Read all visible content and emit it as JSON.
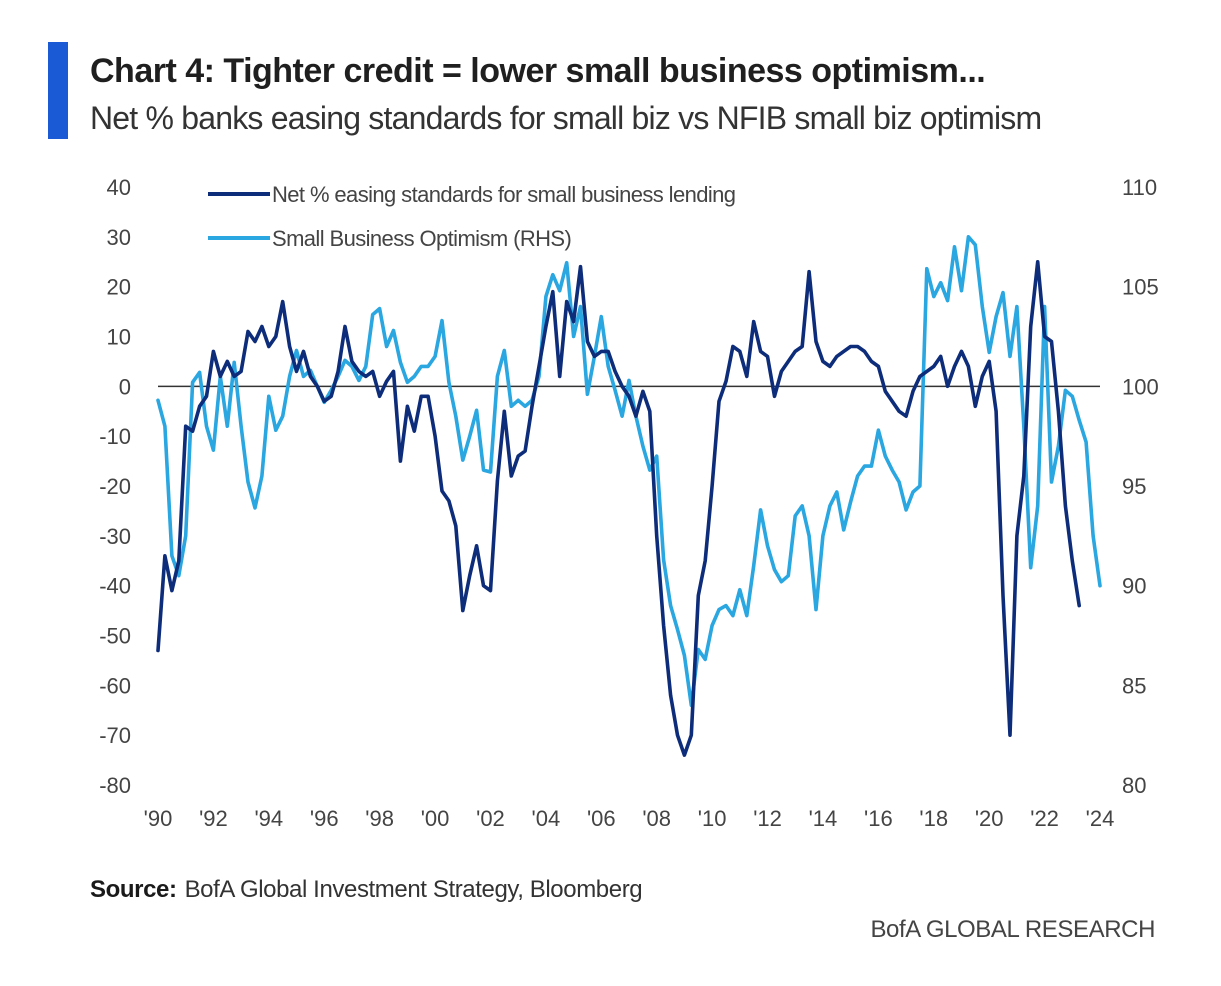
{
  "header": {
    "title": "Chart 4: Tighter credit = lower small business optimism...",
    "subtitle": "Net % banks easing standards for small biz vs NFIB small biz optimism"
  },
  "footer": {
    "source_label": "Source:",
    "source_text": "BofA Global Investment Strategy, Bloomberg",
    "brand": "BofA GLOBAL RESEARCH"
  },
  "colors": {
    "accent": "#1a5ad4",
    "series_dark": "#0d2c7a",
    "series_light": "#2aa6e0",
    "zero_line": "#333333"
  },
  "chart_data": {
    "type": "line",
    "title": "",
    "grid": false,
    "legend_position": "top-left",
    "left_axis": {
      "ylim": [
        -80,
        40
      ],
      "ticks": [
        40,
        30,
        20,
        10,
        0,
        -10,
        -20,
        -30,
        -40,
        -50,
        -60,
        -70,
        -80
      ]
    },
    "right_axis": {
      "ylim": [
        80,
        110
      ],
      "ticks": [
        110,
        105,
        100,
        95,
        90,
        85,
        80
      ]
    },
    "x_axis": {
      "xlim": [
        1990,
        2024
      ],
      "ticks": [
        1990,
        1992,
        1994,
        1996,
        1998,
        2000,
        2002,
        2004,
        2006,
        2008,
        2010,
        2012,
        2014,
        2016,
        2018,
        2020,
        2022,
        2024
      ],
      "tick_labels": [
        "'90",
        "'92",
        "'94",
        "'96",
        "'98",
        "'00",
        "'02",
        "'04",
        "'06",
        "'08",
        "'10",
        "'12",
        "'14",
        "'16",
        "'18",
        "'20",
        "'22",
        "'24"
      ]
    },
    "series": [
      {
        "name": "Net % easing standards for small business lending",
        "axis": "left",
        "points": [
          [
            1990.0,
            -53
          ],
          [
            1990.25,
            -34
          ],
          [
            1990.5,
            -41
          ],
          [
            1990.75,
            -35
          ],
          [
            1991.0,
            -8
          ],
          [
            1991.25,
            -9
          ],
          [
            1991.5,
            -4
          ],
          [
            1991.75,
            -2
          ],
          [
            1992.0,
            7
          ],
          [
            1992.25,
            2
          ],
          [
            1992.5,
            5
          ],
          [
            1992.75,
            2
          ],
          [
            1993.0,
            3
          ],
          [
            1993.25,
            11
          ],
          [
            1993.5,
            9
          ],
          [
            1993.75,
            12
          ],
          [
            1994.0,
            8
          ],
          [
            1994.25,
            10
          ],
          [
            1994.5,
            17
          ],
          [
            1994.75,
            8
          ],
          [
            1995.0,
            3
          ],
          [
            1995.25,
            7
          ],
          [
            1995.5,
            2
          ],
          [
            1995.75,
            0
          ],
          [
            1996.0,
            -3
          ],
          [
            1996.25,
            -2
          ],
          [
            1996.5,
            3
          ],
          [
            1996.75,
            12
          ],
          [
            1997.0,
            5
          ],
          [
            1997.25,
            3
          ],
          [
            1997.5,
            2
          ],
          [
            1997.75,
            3
          ],
          [
            1998.0,
            -2
          ],
          [
            1998.25,
            1
          ],
          [
            1998.5,
            3
          ],
          [
            1998.75,
            -15
          ],
          [
            1999.0,
            -4
          ],
          [
            1999.25,
            -9
          ],
          [
            1999.5,
            -2
          ],
          [
            1999.75,
            -2
          ],
          [
            2000.0,
            -10
          ],
          [
            2000.25,
            -21
          ],
          [
            2000.5,
            -23
          ],
          [
            2000.75,
            -28
          ],
          [
            2001.0,
            -45
          ],
          [
            2001.25,
            -38
          ],
          [
            2001.5,
            -32
          ],
          [
            2001.75,
            -40
          ],
          [
            2002.0,
            -41
          ],
          [
            2002.25,
            -19
          ],
          [
            2002.5,
            -5
          ],
          [
            2002.75,
            -18
          ],
          [
            2003.0,
            -14
          ],
          [
            2003.25,
            -13
          ],
          [
            2003.5,
            -4
          ],
          [
            2003.75,
            4
          ],
          [
            2004.0,
            12
          ],
          [
            2004.25,
            19
          ],
          [
            2004.5,
            2
          ],
          [
            2004.75,
            17
          ],
          [
            2005.0,
            13
          ],
          [
            2005.25,
            24
          ],
          [
            2005.5,
            9
          ],
          [
            2005.75,
            6
          ],
          [
            2006.0,
            7
          ],
          [
            2006.25,
            7
          ],
          [
            2006.5,
            3
          ],
          [
            2006.75,
            0
          ],
          [
            2007.0,
            -2
          ],
          [
            2007.25,
            -6
          ],
          [
            2007.5,
            -1
          ],
          [
            2007.75,
            -5
          ],
          [
            2008.0,
            -30
          ],
          [
            2008.25,
            -48
          ],
          [
            2008.5,
            -62
          ],
          [
            2008.75,
            -70
          ],
          [
            2009.0,
            -74
          ],
          [
            2009.25,
            -70
          ],
          [
            2009.5,
            -42
          ],
          [
            2009.75,
            -35
          ],
          [
            2010.0,
            -20
          ],
          [
            2010.25,
            -3
          ],
          [
            2010.5,
            1
          ],
          [
            2010.75,
            8
          ],
          [
            2011.0,
            7
          ],
          [
            2011.25,
            2
          ],
          [
            2011.5,
            13
          ],
          [
            2011.75,
            7
          ],
          [
            2012.0,
            6
          ],
          [
            2012.25,
            -2
          ],
          [
            2012.5,
            3
          ],
          [
            2012.75,
            5
          ],
          [
            2013.0,
            7
          ],
          [
            2013.25,
            8
          ],
          [
            2013.5,
            23
          ],
          [
            2013.75,
            9
          ],
          [
            2014.0,
            5
          ],
          [
            2014.25,
            4
          ],
          [
            2014.5,
            6
          ],
          [
            2014.75,
            7
          ],
          [
            2015.0,
            8
          ],
          [
            2015.25,
            8
          ],
          [
            2015.5,
            7
          ],
          [
            2015.75,
            5
          ],
          [
            2016.0,
            4
          ],
          [
            2016.25,
            -1
          ],
          [
            2016.5,
            -3
          ],
          [
            2016.75,
            -5
          ],
          [
            2017.0,
            -6
          ],
          [
            2017.25,
            -1
          ],
          [
            2017.5,
            2
          ],
          [
            2017.75,
            3
          ],
          [
            2018.0,
            4
          ],
          [
            2018.25,
            6
          ],
          [
            2018.5,
            0
          ],
          [
            2018.75,
            4
          ],
          [
            2019.0,
            7
          ],
          [
            2019.25,
            4
          ],
          [
            2019.5,
            -4
          ],
          [
            2019.75,
            2
          ],
          [
            2020.0,
            5
          ],
          [
            2020.25,
            -5
          ],
          [
            2020.5,
            -42
          ],
          [
            2020.75,
            -70
          ],
          [
            2021.0,
            -30
          ],
          [
            2021.25,
            -18
          ],
          [
            2021.5,
            12
          ],
          [
            2021.75,
            25
          ],
          [
            2022.0,
            10
          ],
          [
            2022.25,
            9
          ],
          [
            2022.5,
            -5
          ],
          [
            2022.75,
            -24
          ],
          [
            2023.0,
            -35
          ],
          [
            2023.25,
            -44
          ]
        ]
      },
      {
        "name": "Small Business Optimism (RHS)",
        "axis": "right",
        "points": [
          [
            1990.0,
            99.3
          ],
          [
            1990.25,
            98.0
          ],
          [
            1990.5,
            91.5
          ],
          [
            1990.75,
            90.5
          ],
          [
            1991.0,
            92.5
          ],
          [
            1991.25,
            100.2
          ],
          [
            1991.5,
            100.7
          ],
          [
            1991.75,
            98.0
          ],
          [
            1992.0,
            96.8
          ],
          [
            1992.25,
            100.5
          ],
          [
            1992.5,
            98.0
          ],
          [
            1992.75,
            101.2
          ],
          [
            1993.0,
            98.0
          ],
          [
            1993.25,
            95.2
          ],
          [
            1993.5,
            93.9
          ],
          [
            1993.75,
            95.5
          ],
          [
            1994.0,
            99.5
          ],
          [
            1994.25,
            97.8
          ],
          [
            1994.5,
            98.5
          ],
          [
            1994.75,
            100.5
          ],
          [
            1995.0,
            101.8
          ],
          [
            1995.25,
            100.5
          ],
          [
            1995.5,
            100.8
          ],
          [
            1995.75,
            100.0
          ],
          [
            1996.0,
            99.2
          ],
          [
            1996.25,
            99.8
          ],
          [
            1996.5,
            100.5
          ],
          [
            1996.75,
            101.3
          ],
          [
            1997.0,
            101.0
          ],
          [
            1997.25,
            100.3
          ],
          [
            1997.5,
            101.0
          ],
          [
            1997.75,
            103.6
          ],
          [
            1998.0,
            103.9
          ],
          [
            1998.25,
            102.0
          ],
          [
            1998.5,
            102.8
          ],
          [
            1998.75,
            101.2
          ],
          [
            1999.0,
            100.2
          ],
          [
            1999.25,
            100.5
          ],
          [
            1999.5,
            101.0
          ],
          [
            1999.75,
            101.0
          ],
          [
            2000.0,
            101.5
          ],
          [
            2000.25,
            103.3
          ],
          [
            2000.5,
            100.2
          ],
          [
            2000.75,
            98.5
          ],
          [
            2001.0,
            96.3
          ],
          [
            2001.25,
            97.5
          ],
          [
            2001.5,
            98.8
          ],
          [
            2001.75,
            95.8
          ],
          [
            2002.0,
            95.7
          ],
          [
            2002.25,
            100.5
          ],
          [
            2002.5,
            101.8
          ],
          [
            2002.75,
            99.0
          ],
          [
            2003.0,
            99.3
          ],
          [
            2003.25,
            99.0
          ],
          [
            2003.5,
            99.3
          ],
          [
            2003.75,
            100.5
          ],
          [
            2004.0,
            104.5
          ],
          [
            2004.25,
            105.6
          ],
          [
            2004.5,
            104.8
          ],
          [
            2004.75,
            106.2
          ],
          [
            2005.0,
            102.5
          ],
          [
            2005.25,
            104.0
          ],
          [
            2005.5,
            99.6
          ],
          [
            2005.75,
            101.5
          ],
          [
            2006.0,
            103.5
          ],
          [
            2006.25,
            101.0
          ],
          [
            2006.5,
            99.8
          ],
          [
            2006.75,
            98.5
          ],
          [
            2007.0,
            100.3
          ],
          [
            2007.25,
            98.5
          ],
          [
            2007.5,
            97.0
          ],
          [
            2007.75,
            95.8
          ],
          [
            2008.0,
            96.5
          ],
          [
            2008.25,
            91.3
          ],
          [
            2008.5,
            89.0
          ],
          [
            2008.75,
            87.8
          ],
          [
            2009.0,
            86.5
          ],
          [
            2009.25,
            84.0
          ],
          [
            2009.5,
            86.8
          ],
          [
            2009.75,
            86.3
          ],
          [
            2010.0,
            88.0
          ],
          [
            2010.25,
            88.8
          ],
          [
            2010.5,
            89.0
          ],
          [
            2010.75,
            88.5
          ],
          [
            2011.0,
            89.8
          ],
          [
            2011.25,
            88.5
          ],
          [
            2011.5,
            91.0
          ],
          [
            2011.75,
            93.8
          ],
          [
            2012.0,
            92.0
          ],
          [
            2012.25,
            90.8
          ],
          [
            2012.5,
            90.2
          ],
          [
            2012.75,
            90.5
          ],
          [
            2013.0,
            93.5
          ],
          [
            2013.25,
            94.0
          ],
          [
            2013.5,
            92.5
          ],
          [
            2013.75,
            88.8
          ],
          [
            2014.0,
            92.5
          ],
          [
            2014.25,
            94.0
          ],
          [
            2014.5,
            94.7
          ],
          [
            2014.75,
            92.8
          ],
          [
            2015.0,
            94.2
          ],
          [
            2015.25,
            95.5
          ],
          [
            2015.5,
            96.0
          ],
          [
            2015.75,
            96.0
          ],
          [
            2016.0,
            97.8
          ],
          [
            2016.25,
            96.5
          ],
          [
            2016.5,
            95.8
          ],
          [
            2016.75,
            95.2
          ],
          [
            2017.0,
            93.8
          ],
          [
            2017.25,
            94.7
          ],
          [
            2017.5,
            95.0
          ],
          [
            2017.75,
            105.9
          ],
          [
            2018.0,
            104.5
          ],
          [
            2018.25,
            105.2
          ],
          [
            2018.5,
            104.3
          ],
          [
            2018.75,
            107.0
          ],
          [
            2019.0,
            104.8
          ],
          [
            2019.25,
            107.5
          ],
          [
            2019.5,
            107.1
          ],
          [
            2019.75,
            104.0
          ],
          [
            2020.0,
            101.7
          ],
          [
            2020.25,
            103.5
          ],
          [
            2020.5,
            104.7
          ],
          [
            2020.75,
            101.5
          ],
          [
            2021.0,
            104.0
          ],
          [
            2021.25,
            98.0
          ],
          [
            2021.5,
            90.9
          ],
          [
            2021.75,
            94.0
          ],
          [
            2022.0,
            104.0
          ],
          [
            2022.25,
            95.2
          ],
          [
            2022.5,
            97.0
          ],
          [
            2022.75,
            99.8
          ],
          [
            2023.0,
            99.5
          ],
          [
            2023.25,
            98.3
          ],
          [
            2023.5,
            97.2
          ],
          [
            2023.75,
            92.5
          ],
          [
            2024.0,
            90.0
          ]
        ]
      }
    ]
  }
}
